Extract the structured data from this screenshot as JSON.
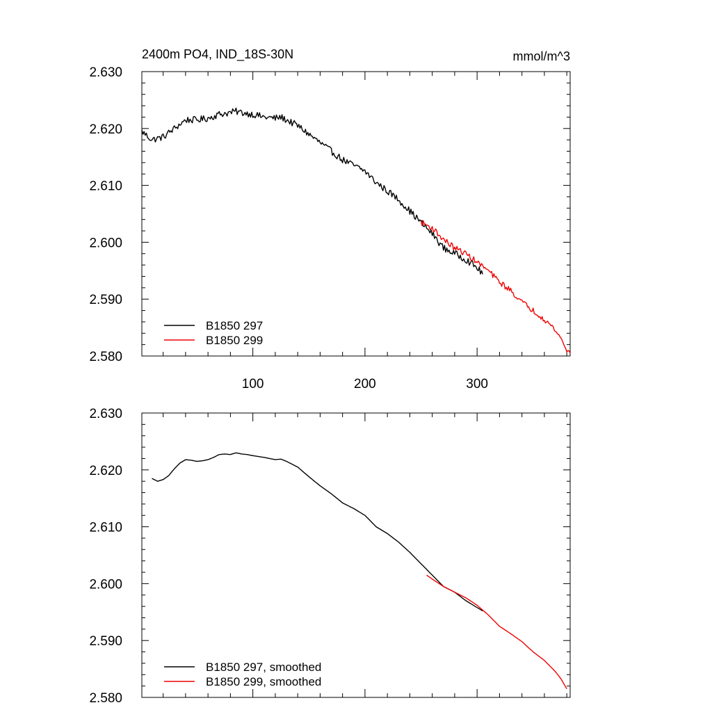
{
  "figure": {
    "title": "2400m PO4, IND_18S-30N",
    "units": "mmol/m^3"
  },
  "colors": {
    "series_297": "#000000",
    "series_299": "#ee0000",
    "axis": "#000000",
    "background": "#ffffff"
  },
  "chart_data": [
    {
      "type": "line",
      "title": "2400m PO4, IND_18S-30N",
      "units_label": "mmol/m^3",
      "xlabel": "",
      "ylabel": "",
      "xlim": [
        1,
        383
      ],
      "ylim": [
        2.58,
        2.63
      ],
      "xticks": [
        100,
        200,
        300
      ],
      "xtick_labels": [
        "100",
        "200",
        "300"
      ],
      "yticks": [
        2.58,
        2.59,
        2.6,
        2.61,
        2.62,
        2.63
      ],
      "ytick_labels": [
        "2.580",
        "2.590",
        "2.600",
        "2.610",
        "2.620",
        "2.630"
      ],
      "grid": false,
      "legend_position": "bottom-left",
      "series": [
        {
          "name": "B1850 297",
          "color": "#000000",
          "noise": 0.0006,
          "x": [
            1,
            10,
            20,
            30,
            40,
            50,
            60,
            70,
            80,
            85,
            90,
            100,
            110,
            120,
            125,
            130,
            140,
            150,
            160,
            170,
            180,
            190,
            200,
            210,
            220,
            230,
            240,
            250,
            260,
            270,
            280,
            290,
            300,
            305
          ],
          "y": [
            2.6195,
            2.618,
            2.6185,
            2.62,
            2.6215,
            2.6215,
            2.6218,
            2.6225,
            2.6228,
            2.623,
            2.6228,
            2.6225,
            2.622,
            2.6218,
            2.622,
            2.6215,
            2.6205,
            2.619,
            2.6175,
            2.616,
            2.6145,
            2.6135,
            2.6125,
            2.6105,
            2.609,
            2.6075,
            2.6055,
            2.6035,
            2.6015,
            2.599,
            2.598,
            2.597,
            2.5955,
            2.5945
          ]
        },
        {
          "name": "B1850 299",
          "color": "#ee0000",
          "noise": 0.0005,
          "x": [
            250,
            255,
            260,
            270,
            280,
            290,
            300,
            310,
            320,
            330,
            340,
            350,
            360,
            370,
            375,
            380,
            383
          ],
          "y": [
            2.6035,
            2.603,
            2.6025,
            2.6005,
            2.599,
            2.598,
            2.5965,
            2.595,
            2.593,
            2.5915,
            2.5895,
            2.588,
            2.5865,
            2.5845,
            2.583,
            2.581,
            2.5805
          ]
        }
      ]
    },
    {
      "type": "line",
      "title": "",
      "xlabel": "",
      "ylabel": "",
      "xlim": [
        1,
        383
      ],
      "ylim": [
        2.58,
        2.63
      ],
      "xticks": [
        100,
        200,
        300
      ],
      "yticks": [
        2.58,
        2.59,
        2.6,
        2.61,
        2.62,
        2.63
      ],
      "ytick_labels": [
        "2.580",
        "2.590",
        "2.600",
        "2.610",
        "2.620",
        "2.630"
      ],
      "grid": false,
      "legend_position": "bottom-left",
      "series": [
        {
          "name": "B1850 297, smoothed",
          "color": "#000000",
          "noise": 0,
          "x": [
            10,
            15,
            20,
            25,
            30,
            35,
            40,
            45,
            50,
            55,
            60,
            65,
            70,
            75,
            80,
            85,
            90,
            95,
            100,
            110,
            120,
            125,
            130,
            140,
            150,
            160,
            170,
            180,
            190,
            200,
            205,
            210,
            220,
            230,
            240,
            250,
            260,
            270,
            280,
            290,
            300,
            305
          ],
          "y": [
            2.6185,
            2.618,
            2.6183,
            2.619,
            2.6202,
            2.6212,
            2.6218,
            2.6217,
            2.6215,
            2.6216,
            2.6218,
            2.6222,
            2.6227,
            2.6228,
            2.6227,
            2.623,
            2.6228,
            2.6227,
            2.6225,
            2.6222,
            2.6218,
            2.6219,
            2.6215,
            2.6205,
            2.6188,
            2.6172,
            2.6158,
            2.6142,
            2.6132,
            2.612,
            2.611,
            2.61,
            2.6088,
            2.6073,
            2.6055,
            2.6035,
            2.6015,
            2.5995,
            2.5985,
            2.597,
            2.5958,
            2.5952
          ]
        },
        {
          "name": "B1850 299, smoothed",
          "color": "#ee0000",
          "noise": 0,
          "x": [
            255,
            260,
            270,
            280,
            290,
            300,
            310,
            320,
            330,
            340,
            350,
            360,
            370,
            375,
            380
          ],
          "y": [
            2.6015,
            2.6008,
            2.5995,
            2.5985,
            2.5975,
            2.5962,
            2.5945,
            2.5925,
            2.5912,
            2.5898,
            2.588,
            2.5865,
            2.5845,
            2.5832,
            2.5815
          ]
        }
      ]
    }
  ]
}
